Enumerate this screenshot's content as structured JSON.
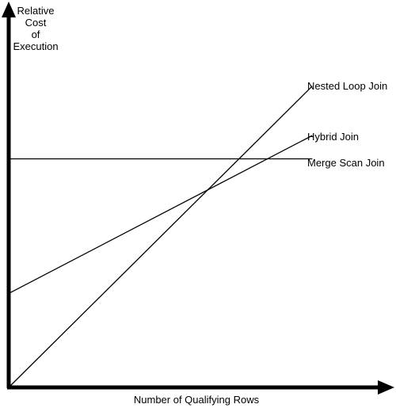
{
  "chart_data": {
    "type": "line",
    "title": "",
    "xlabel": "Number of Qualifying Rows",
    "ylabel": [
      "Relative",
      "Cost",
      "of",
      "Execution"
    ],
    "xlim": [
      0,
      100
    ],
    "ylim": [
      0,
      100
    ],
    "grid": false,
    "legend": "inline-right",
    "series": [
      {
        "name": "Nested Loop Join",
        "x": [
          0,
          78.4
        ],
        "y": [
          0,
          78.6
        ]
      },
      {
        "name": "Hybrid Join",
        "x": [
          0,
          78.4
        ],
        "y": [
          24.5,
          65.7
        ]
      },
      {
        "name": "Merge Scan Join",
        "x": [
          0,
          78.4
        ],
        "y": [
          59.6,
          59.6
        ]
      }
    ]
  },
  "colors": {
    "line": "#000000",
    "axis": "#000000",
    "background": "#ffffff"
  }
}
